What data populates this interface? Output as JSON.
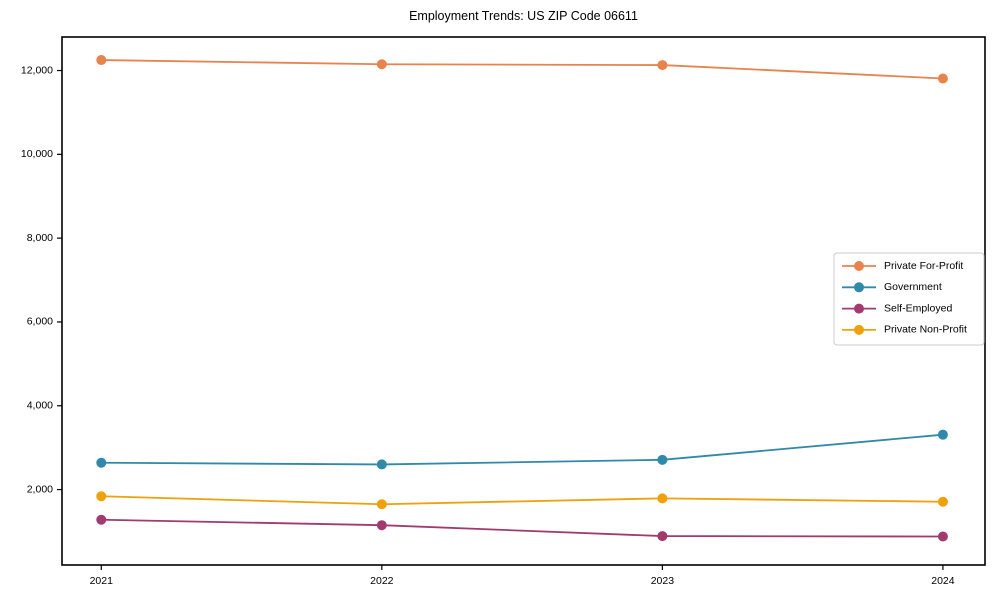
{
  "title": "Employment Trends: US ZIP Code 06611",
  "chart_data": {
    "type": "line",
    "title": "Employment Trends: US ZIP Code 06611",
    "xlabel": "",
    "ylabel": "",
    "x": [
      2021,
      2022,
      2023,
      2024
    ],
    "x_tick_labels": [
      "2021",
      "2022",
      "2023",
      "2024"
    ],
    "y_ticks": [
      2000,
      4000,
      6000,
      8000,
      10000,
      12000
    ],
    "y_tick_labels": [
      "2,000",
      "4,000",
      "6,000",
      "8,000",
      "10,000",
      "12,000"
    ],
    "xlim": [
      2020.86,
      2024.15
    ],
    "ylim": [
      200,
      12800
    ],
    "grid": false,
    "legend_position": "center right",
    "series": [
      {
        "name": "Private For-Profit",
        "color": "#e8834e",
        "values": [
          12250,
          12150,
          12130,
          11810
        ]
      },
      {
        "name": "Government",
        "color": "#3089a8",
        "values": [
          2640,
          2600,
          2710,
          3310
        ]
      },
      {
        "name": "Self-Employed",
        "color": "#a23a70",
        "values": [
          1280,
          1150,
          890,
          880
        ]
      },
      {
        "name": "Private Non-Profit",
        "color": "#efa00b",
        "values": [
          1840,
          1650,
          1790,
          1710
        ]
      }
    ],
    "marker": "circle",
    "marker_radius": 5,
    "line_width": 1.8
  }
}
